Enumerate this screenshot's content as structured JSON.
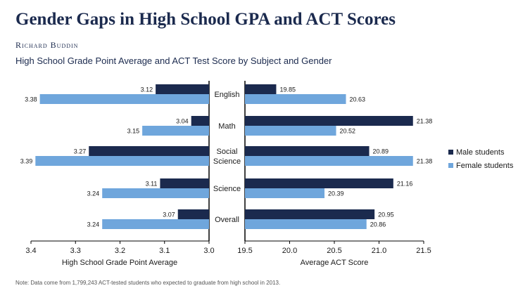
{
  "title": "Gender Gaps in High School GPA and ACT Scores",
  "author": "Richard Buddin",
  "subtitle": "High School Grade Point Average and ACT Test Score by Subject and Gender",
  "note": "Note: Data come from 1,799,243 ACT-tested students who expected to graduate from high school in 2013.",
  "colors": {
    "male": "#1b2a4e",
    "female": "#6fa6dc"
  },
  "chart_data": [
    {
      "type": "bar",
      "orientation": "horizontal",
      "xlabel": "High School Grade Point Average",
      "xlim": [
        3.0,
        3.4
      ],
      "x_reversed": true,
      "ticks": [
        "3.4",
        "3.3",
        "3.2",
        "3.1",
        "3.0"
      ],
      "categories": [
        "English",
        "Math",
        "Social Science",
        "Science",
        "Overall"
      ],
      "series": [
        {
          "name": "Male students",
          "values": [
            3.12,
            3.04,
            3.27,
            3.11,
            3.07
          ],
          "labels": [
            "3.12",
            "3.04",
            "3.27",
            "3.11",
            "3.07"
          ]
        },
        {
          "name": "Female students",
          "values": [
            3.38,
            3.15,
            3.39,
            3.24,
            3.24
          ],
          "labels": [
            "3.38",
            "3.15",
            "3.39",
            "3.24",
            "3.24"
          ]
        }
      ]
    },
    {
      "type": "bar",
      "orientation": "horizontal",
      "xlabel": "Average ACT Score",
      "xlim": [
        19.5,
        21.5
      ],
      "ticks": [
        "19.5",
        "20.0",
        "20.5",
        "21.0",
        "21.5"
      ],
      "categories": [
        "English",
        "Math",
        "Social Science",
        "Science",
        "Overall"
      ],
      "series": [
        {
          "name": "Male students",
          "values": [
            19.85,
            21.38,
            20.89,
            21.16,
            20.95
          ],
          "labels": [
            "19.85",
            "21.38",
            "20.89",
            "21.16",
            "20.95"
          ]
        },
        {
          "name": "Female students",
          "values": [
            20.63,
            20.52,
            21.38,
            20.39,
            20.86
          ],
          "labels": [
            "20.63",
            "20.52",
            "21.38",
            "20.39",
            "20.86"
          ]
        }
      ]
    }
  ],
  "category_lines": [
    [
      "English"
    ],
    [
      "Math"
    ],
    [
      "Social",
      "Science"
    ],
    [
      "Science"
    ],
    [
      "Overall"
    ]
  ],
  "legend": [
    "Male students",
    "Female students"
  ]
}
